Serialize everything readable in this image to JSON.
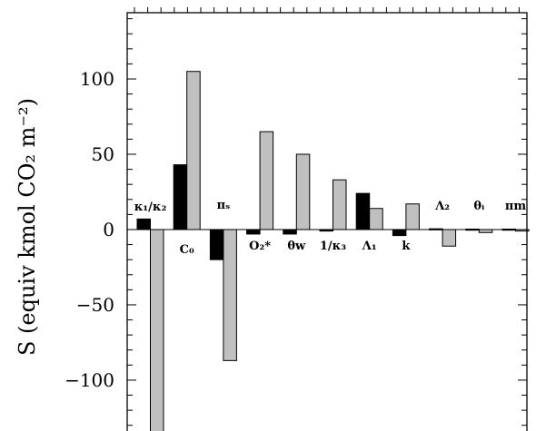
{
  "chart_data": {
    "type": "bar",
    "ylabel": "S (equiv kmol CO₂ m⁻²)",
    "ylim": [
      -138,
      144
    ],
    "yticks": [
      -100,
      -50,
      0,
      50,
      100
    ],
    "ytick_labels": [
      "−100",
      "−50",
      "0",
      "50",
      "100"
    ],
    "grid": false,
    "legend": "none",
    "categories": [
      "κ₁/κ₂",
      "C₀",
      "πₛ",
      "O₂*",
      "θw",
      "1/κ₃",
      "Λ₁",
      "k",
      "Λ₂",
      "θᵢ",
      "πm"
    ],
    "series": [
      {
        "color": "#000000",
        "values": [
          7,
          43,
          -20,
          -3,
          -3,
          -1,
          24,
          -4,
          0.5,
          0.3,
          0.3
        ]
      },
      {
        "color": "#c0c0c0",
        "values": [
          -138,
          105,
          -87,
          65,
          50,
          33,
          14,
          17,
          -11,
          -2,
          -1
        ]
      }
    ]
  }
}
